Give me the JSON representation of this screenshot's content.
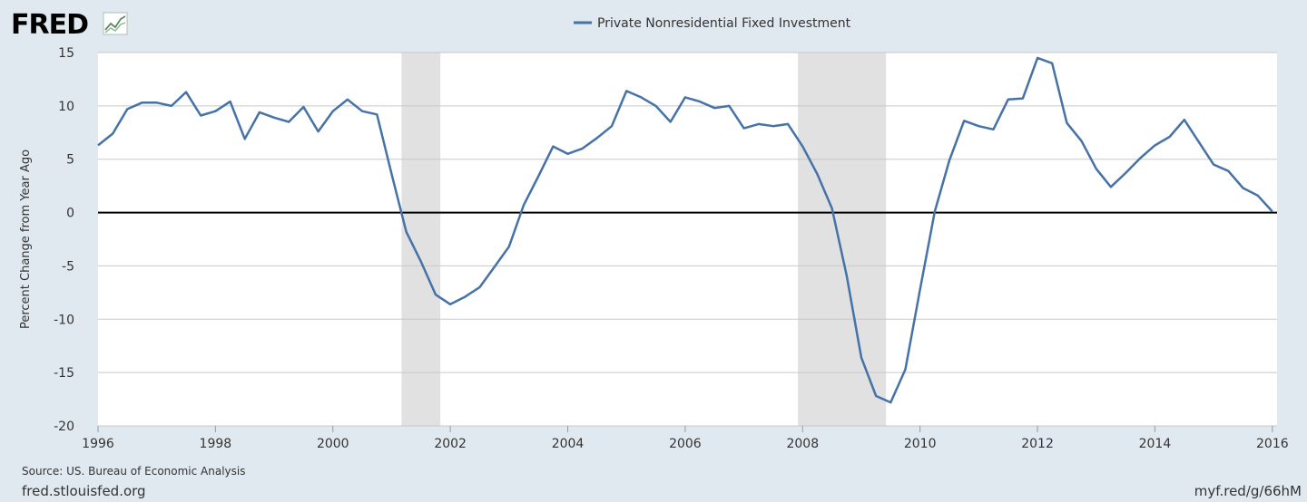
{
  "header": {
    "logo_text": "FRED",
    "logo_icon": "chart-line-icon"
  },
  "legend": {
    "label": "Private Nonresidential Fixed Investment"
  },
  "footer": {
    "source": "Source: US. Bureau of Economic Analysis",
    "site": "fred.stlouisfed.org",
    "short_url": "myf.red/g/66hM"
  },
  "colors": {
    "background": "#e1e9f0",
    "plot_background": "#ffffff",
    "series": "#4572a7",
    "recession": "#e1e1e1",
    "grid": "#c8c8c8",
    "zero_line": "#000000",
    "logo": "#000000"
  },
  "chart_data": {
    "type": "line",
    "title": "",
    "xlabel": "",
    "ylabel": "Percent Change from Year Ago",
    "xlim": [
      1996.0,
      2016.08
    ],
    "ylim": [
      -20,
      15
    ],
    "x_ticks": [
      1996,
      1998,
      2000,
      2002,
      2004,
      2006,
      2008,
      2010,
      2012,
      2014,
      2016
    ],
    "y_ticks": [
      15,
      10,
      5,
      0,
      -5,
      -10,
      -15,
      -20
    ],
    "grid": true,
    "zero_line": true,
    "legend_position": "top-center",
    "recessions": [
      {
        "start": 2001.17,
        "end": 2001.83
      },
      {
        "start": 2007.92,
        "end": 2009.42
      }
    ],
    "series": [
      {
        "name": "Private Nonresidential Fixed Investment",
        "x": [
          1996.0,
          1996.25,
          1996.5,
          1996.75,
          1997.0,
          1997.25,
          1997.5,
          1997.75,
          1998.0,
          1998.25,
          1998.5,
          1998.75,
          1999.0,
          1999.25,
          1999.5,
          1999.75,
          2000.0,
          2000.25,
          2000.5,
          2000.75,
          2001.0,
          2001.25,
          2001.5,
          2001.75,
          2002.0,
          2002.25,
          2002.5,
          2002.75,
          2003.0,
          2003.25,
          2003.5,
          2003.75,
          2004.0,
          2004.25,
          2004.5,
          2004.75,
          2005.0,
          2005.25,
          2005.5,
          2005.75,
          2006.0,
          2006.25,
          2006.5,
          2006.75,
          2007.0,
          2007.25,
          2007.5,
          2007.75,
          2008.0,
          2008.25,
          2008.5,
          2008.75,
          2009.0,
          2009.25,
          2009.5,
          2009.75,
          2010.0,
          2010.25,
          2010.5,
          2010.75,
          2011.0,
          2011.25,
          2011.5,
          2011.75,
          2012.0,
          2012.25,
          2012.5,
          2012.75,
          2013.0,
          2013.25,
          2013.5,
          2013.75,
          2014.0,
          2014.25,
          2014.5,
          2014.75,
          2015.0,
          2015.25,
          2015.5,
          2015.75,
          2016.0
        ],
        "values": [
          6.3,
          7.4,
          9.7,
          10.3,
          10.3,
          10.0,
          11.3,
          9.1,
          9.5,
          10.4,
          6.9,
          9.4,
          8.9,
          8.5,
          9.9,
          7.6,
          9.5,
          10.6,
          9.5,
          9.2,
          3.6,
          -1.8,
          -4.6,
          -7.7,
          -8.6,
          -7.9,
          -7.0,
          -5.1,
          -3.2,
          0.7,
          3.4,
          6.2,
          5.5,
          6.0,
          7.0,
          8.1,
          11.4,
          10.8,
          10.0,
          8.5,
          10.8,
          10.4,
          9.8,
          10.0,
          7.9,
          8.3,
          8.1,
          8.3,
          6.2,
          3.6,
          0.4,
          -5.9,
          -13.6,
          -17.2,
          -17.8,
          -14.7,
          -7.2,
          0.1,
          4.9,
          8.6,
          8.1,
          7.8,
          10.6,
          10.7,
          14.5,
          14.0,
          8.4,
          6.7,
          4.1,
          2.4,
          3.7,
          5.1,
          6.3,
          7.1,
          8.7,
          6.6,
          4.5,
          3.9,
          2.3,
          1.6,
          0.1
        ]
      }
    ]
  }
}
